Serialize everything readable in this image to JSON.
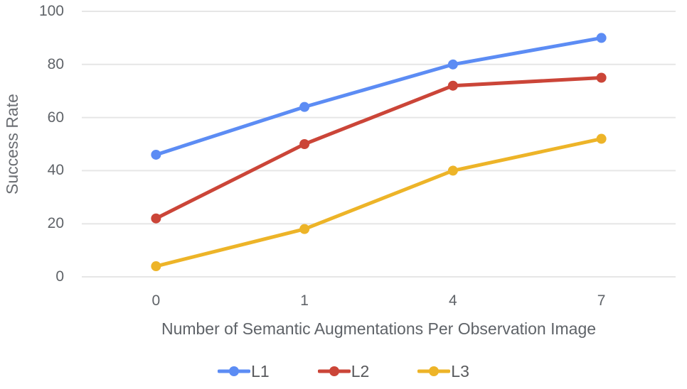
{
  "chart_data": {
    "type": "line",
    "title": "",
    "xlabel": "Number of Semantic Augmentations Per Observation Image",
    "ylabel": "Success Rate",
    "categories": [
      "0",
      "1",
      "4",
      "7"
    ],
    "series": [
      {
        "name": "L1",
        "color": "#5c8cf4",
        "values": [
          46,
          64,
          80,
          90
        ]
      },
      {
        "name": "L2",
        "color": "#cb4538",
        "values": [
          22,
          50,
          72,
          75
        ]
      },
      {
        "name": "L3",
        "color": "#edb428",
        "values": [
          4,
          18,
          40,
          52
        ]
      }
    ],
    "ylim": [
      0,
      100
    ],
    "yticks": [
      0,
      20,
      40,
      60,
      80,
      100
    ],
    "grid": true,
    "legend_position": "bottom"
  },
  "colors": {
    "background": "#ffffff",
    "gridline": "#e6e6e6",
    "tick_text": "#5f6368",
    "axis_title_text": "#5f6368",
    "legend_text": "#58595c"
  }
}
